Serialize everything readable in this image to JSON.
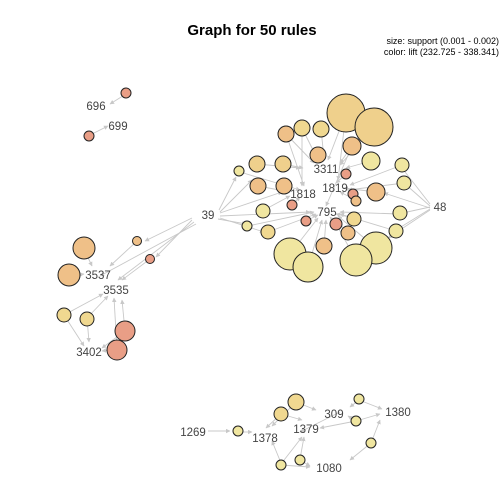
{
  "title": "Graph for 50 rules",
  "legend": {
    "size": "size: support (0.001 - 0.002)",
    "color": "color: lift (232.725 - 338.341)"
  },
  "items": [
    "696",
    "699",
    "3311",
    "1818",
    "1819",
    "795",
    "39",
    "48",
    "3537",
    "3535",
    "3402",
    "1269",
    "1378",
    "1379",
    "309",
    "1380",
    "1080"
  ],
  "colors": {
    "high_lift": "#e99e86",
    "mid_lift": "#efc088",
    "low_lift": "#f0e6a0",
    "edge": "#c8c8c8"
  }
}
